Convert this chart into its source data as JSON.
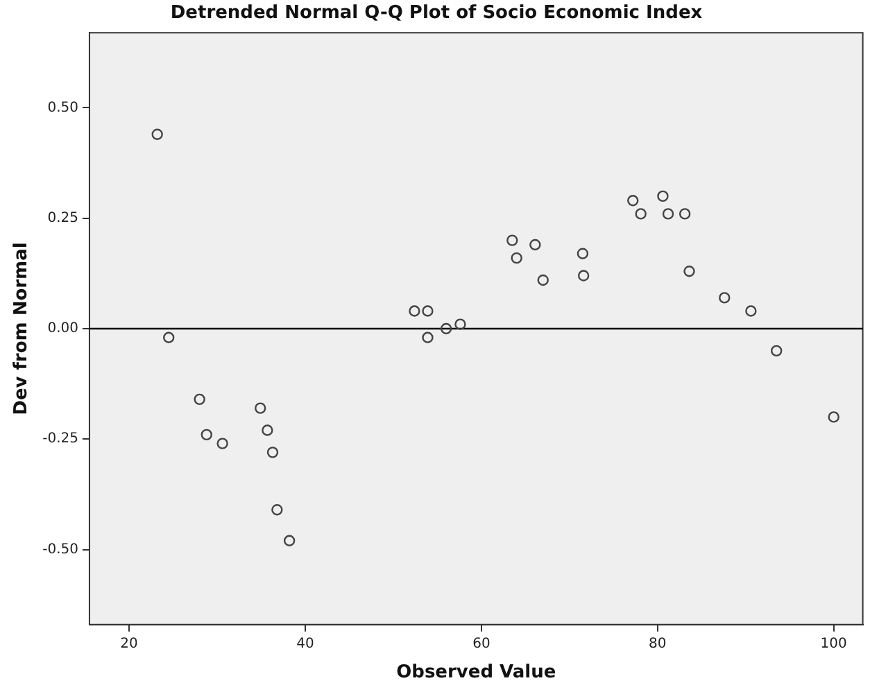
{
  "chart_data": {
    "type": "scatter",
    "title": "Detrended Normal Q-Q Plot of Socio Economic Index",
    "xlabel": "Observed Value",
    "ylabel": "Dev from Normal",
    "x": [
      23.2,
      24.5,
      28.0,
      28.8,
      30.6,
      34.9,
      35.7,
      36.3,
      36.8,
      38.2,
      52.4,
      53.9,
      53.9,
      56.0,
      57.6,
      63.5,
      64.0,
      66.1,
      67.0,
      71.5,
      71.6,
      77.2,
      78.1,
      80.6,
      81.2,
      83.1,
      83.6,
      87.6,
      90.6,
      93.5,
      100.0
    ],
    "series": [
      {
        "color": "#444444",
        "values": [
          0.44,
          -0.02,
          -0.16,
          -0.24,
          -0.26,
          -0.18,
          -0.23,
          -0.28,
          -0.41,
          -0.48,
          0.04,
          0.04,
          -0.02,
          0.0,
          0.01,
          0.2,
          0.16,
          0.19,
          0.11,
          0.17,
          0.12,
          0.29,
          0.26,
          0.3,
          0.26,
          0.26,
          0.13,
          0.07,
          0.04,
          -0.05,
          -0.2
        ]
      }
    ],
    "xlim": [
      15.5,
      103.3
    ],
    "ylim": [
      -0.67,
      0.67
    ],
    "xticks": [
      20,
      40,
      60,
      80,
      100
    ],
    "yticks": [
      {
        "value": -0.5,
        "label": "-0.50"
      },
      {
        "value": -0.25,
        "label": "-0.25"
      },
      {
        "value": 0,
        "label": "0.00"
      },
      {
        "value": 0.25,
        "label": "0.25"
      },
      {
        "value": 0.5,
        "label": "0.50"
      }
    ],
    "ref_lines": [
      {
        "axis": "y",
        "value": 0,
        "color": "#000000"
      }
    ],
    "marker": "circle"
  }
}
